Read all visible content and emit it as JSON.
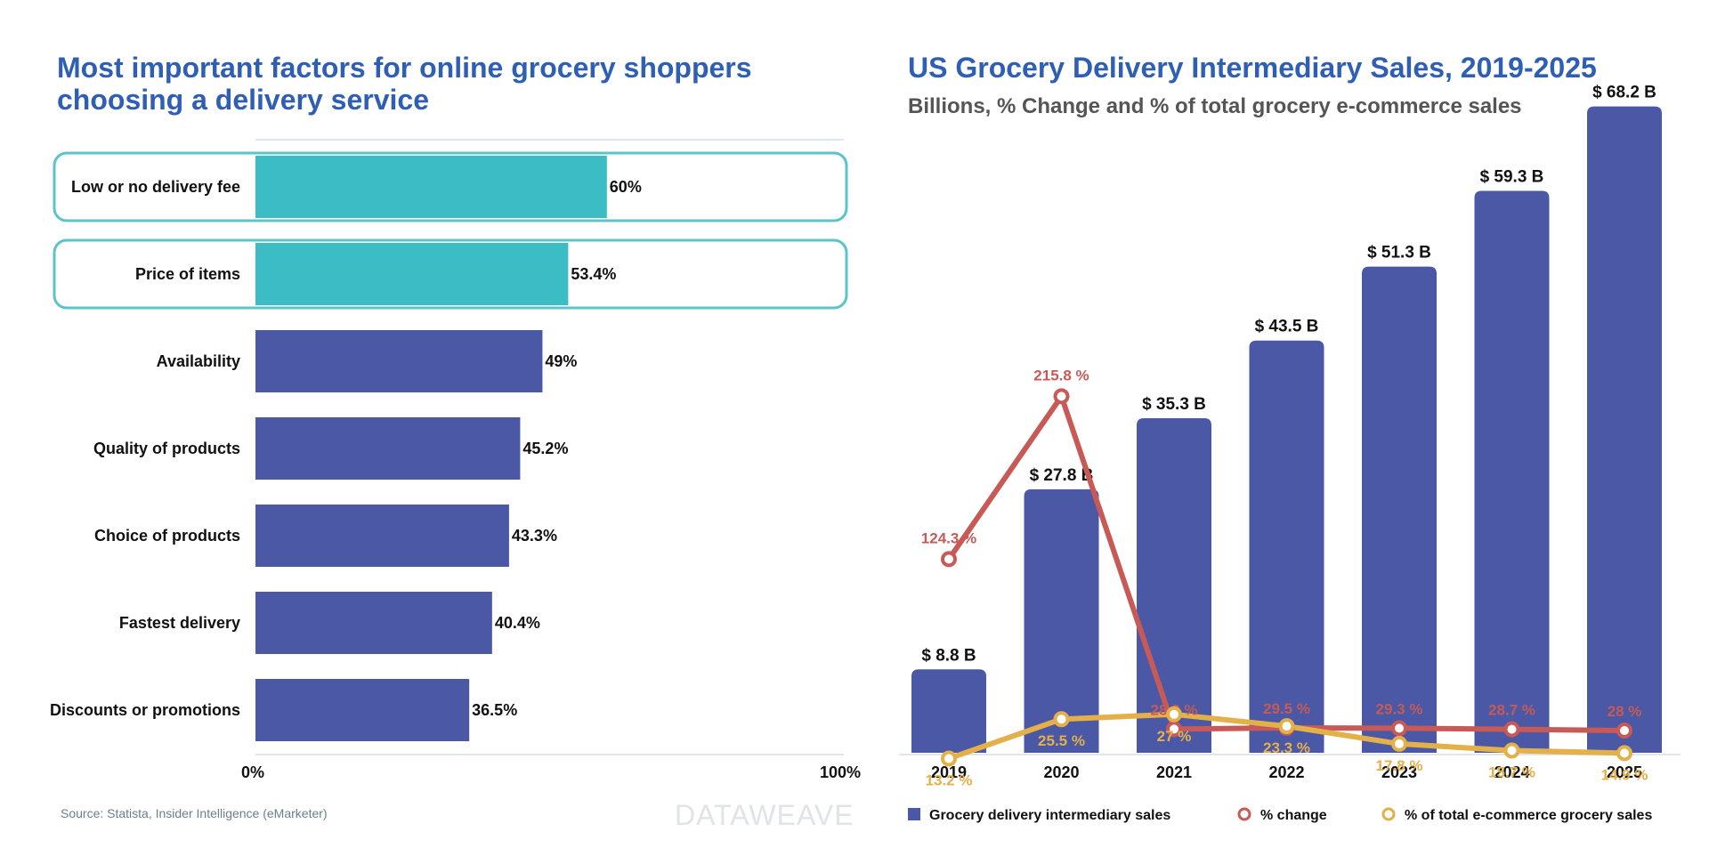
{
  "left_chart": {
    "title": "Most important factors for online grocery shoppers choosing a delivery service",
    "axis_ticks": [
      "0%",
      "100%"
    ],
    "colors": {
      "highlight": "#3cbcc5",
      "default": "#4a58a6",
      "outline": "#5cc4c8"
    }
  },
  "right_chart": {
    "title": "US Grocery Delivery Intermediary Sales, 2019-2025",
    "subtitle": "Billions, % Change and % of total grocery e-commerce sales",
    "colors": {
      "bars": "#4a58a6",
      "change": "#c75a57",
      "share": "#e3b04a"
    }
  },
  "chart_data": [
    {
      "type": "bar",
      "orientation": "horizontal",
      "title": "Most important factors for online grocery shoppers choosing a delivery service",
      "categories": [
        "Low or no delivery fee",
        "Price of items",
        "Availability",
        "Quality of products",
        "Choice of products",
        "Fastest delivery",
        "Discounts or promotions"
      ],
      "values": [
        60,
        53.4,
        49,
        45.2,
        43.3,
        40.4,
        36.5
      ],
      "value_labels": [
        "60%",
        "53.4%",
        "49%",
        "45.2%",
        "43.3%",
        "40.4%",
        "36.5%"
      ],
      "highlighted": [
        true,
        true,
        false,
        false,
        false,
        false,
        false
      ],
      "xlim": [
        0,
        100
      ],
      "grid": false
    },
    {
      "type": "bar",
      "title": "US Grocery Delivery Intermediary Sales, 2019-2025",
      "subtitle": "Billions, % Change and % of total grocery e-commerce sales",
      "categories": [
        "2019",
        "2020",
        "2021",
        "2022",
        "2023",
        "2024",
        "2025"
      ],
      "series": [
        {
          "name": "Grocery delivery intermediary sales",
          "type": "bar",
          "values": [
            8.8,
            27.8,
            35.3,
            43.5,
            51.3,
            59.3,
            68.2
          ],
          "labels": [
            "$ 8.8 B",
            "$ 27.8 B",
            "$ 35.3 B",
            "$ 43.5 B",
            "$ 51.3 B",
            "$ 59.3 B",
            "$ 68.2 B"
          ]
        },
        {
          "name": "% change",
          "type": "line",
          "values": [
            124.3,
            215.8,
            28.8,
            29.5,
            29.3,
            28.7,
            28
          ],
          "labels": [
            "124.3 %",
            "215.8 %",
            "28.8 %",
            "29.5 %",
            "29.3 %",
            "28.7 %",
            "28 %"
          ]
        },
        {
          "name": "% of total e-commerce grocery sales",
          "type": "line",
          "values": [
            13.2,
            25.5,
            27,
            23.3,
            17.8,
            15.7,
            14.9
          ],
          "labels": [
            "13.2 %",
            "25.5 %",
            "27 %",
            "23.3 %",
            "17.8 %",
            "15.7 %",
            "14.9 %"
          ]
        }
      ],
      "legend_position": "bottom",
      "grid": false
    }
  ],
  "footer": {
    "source": "Source: Statista, Insider Intelligence (eMarketer)",
    "watermark": "DATAWEAVE"
  }
}
